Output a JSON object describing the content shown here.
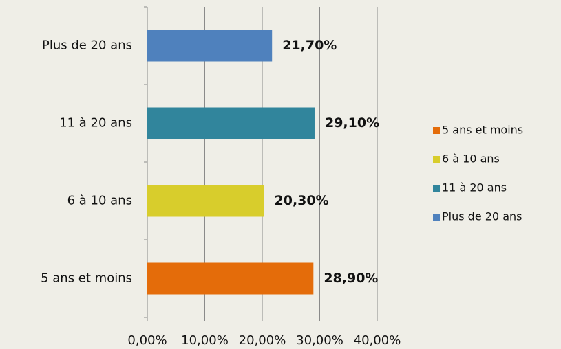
{
  "chart_data": {
    "type": "bar",
    "orientation": "horizontal",
    "categories": [
      "5 ans et moins",
      "6 à 10 ans",
      "11 à 20 ans",
      "Plus de 20 ans"
    ],
    "values": [
      28.9,
      20.3,
      29.1,
      21.7
    ],
    "value_labels": [
      "28,90%",
      "20,30%",
      "29,10%",
      "21,70%"
    ],
    "colors": [
      "#e46c0a",
      "#d8cd2c",
      "#31859c",
      "#4f81bd"
    ],
    "xlim": [
      0,
      40
    ],
    "xticks": [
      {
        "value": 0,
        "label": "0,00%"
      },
      {
        "value": 10,
        "label": "10,00%"
      },
      {
        "value": 20,
        "label": "20,00%"
      },
      {
        "value": 30,
        "label": "30,00%"
      },
      {
        "value": 40,
        "label": "40,00%"
      }
    ],
    "grid": true,
    "legend": "right"
  }
}
